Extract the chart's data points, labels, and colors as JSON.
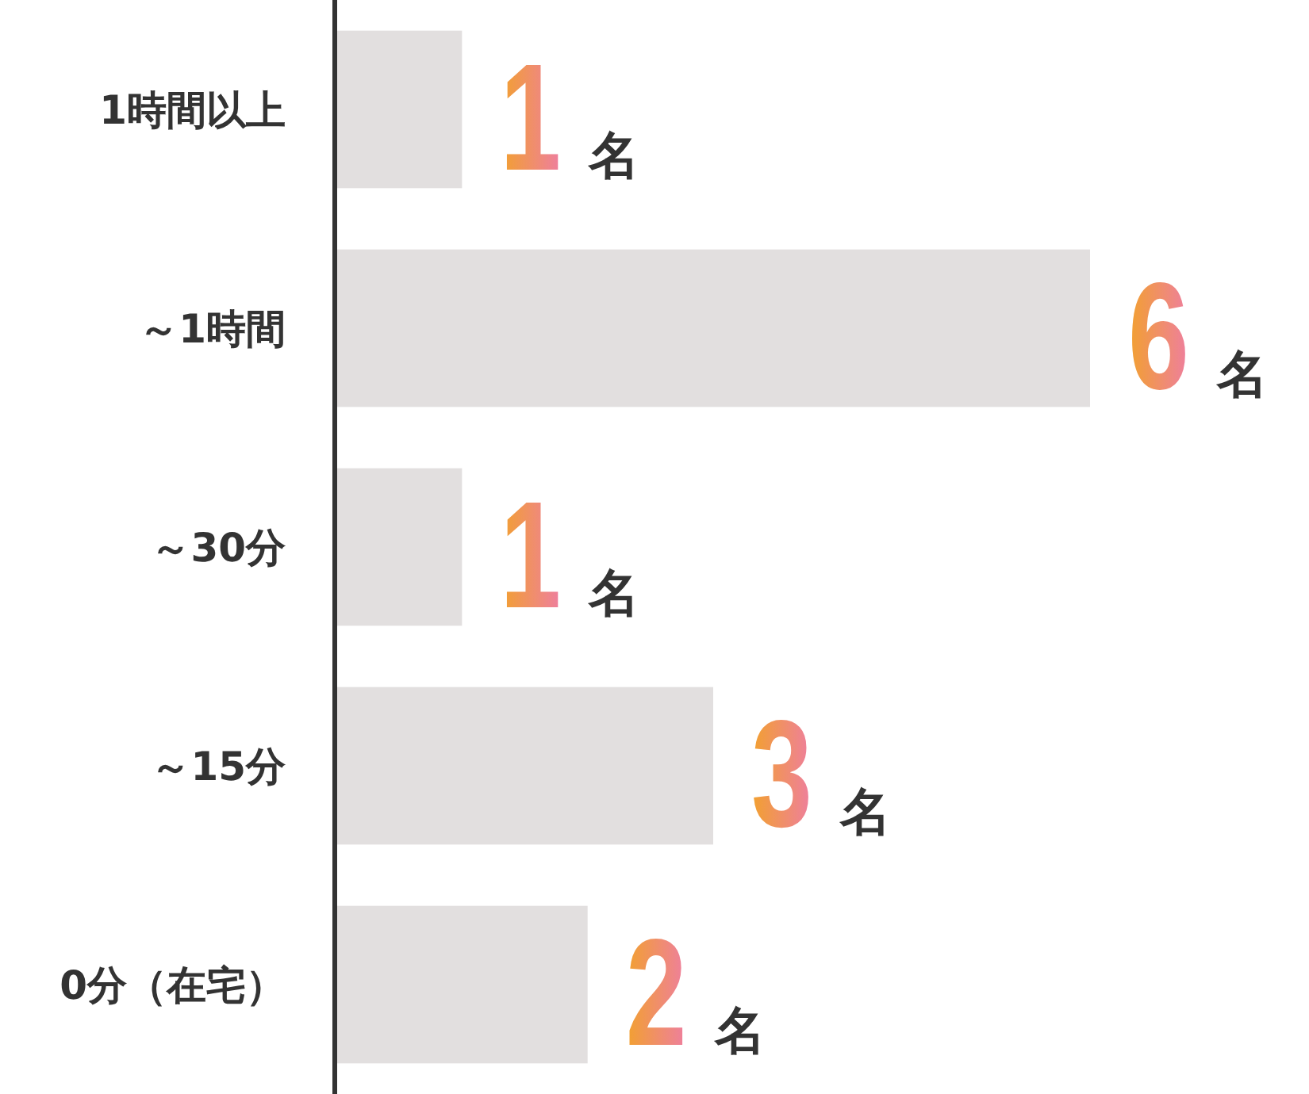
{
  "chart_data": {
    "type": "bar",
    "orientation": "horizontal",
    "categories": [
      "1時間以上",
      "～1時間",
      "～30分",
      "～15分",
      "0分（在宅）"
    ],
    "values": [
      1,
      6,
      1,
      3,
      2
    ],
    "color": "#e2dfdf",
    "value_labels": [
      "1名",
      "6名",
      "1名",
      "3名",
      "2名"
    ]
  }
}
